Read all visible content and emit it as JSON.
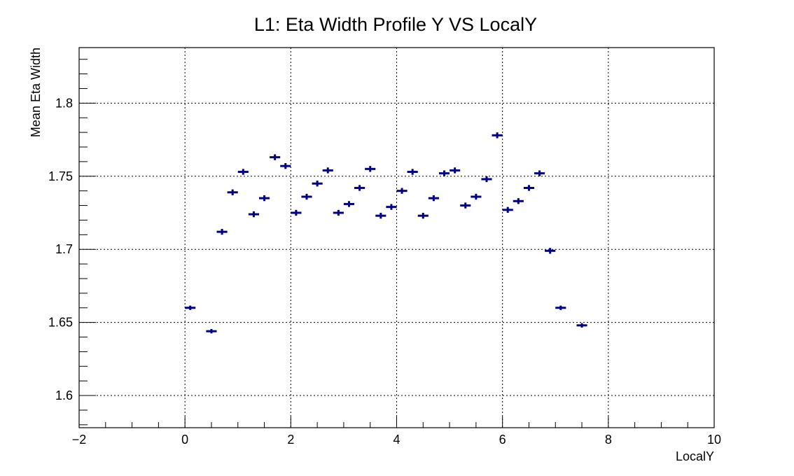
{
  "chart_data": {
    "type": "scatter",
    "title": "L1: Eta Width Profile Y VS LocalY",
    "xlabel": "LocalY",
    "ylabel": "Mean Eta Width",
    "xlim": [
      -2,
      10
    ],
    "ylim": [
      1.578,
      1.838
    ],
    "x_ticks": [
      -2,
      0,
      2,
      4,
      6,
      8,
      10
    ],
    "x_tick_labels": [
      "−2",
      "0",
      "2",
      "4",
      "6",
      "8",
      "10"
    ],
    "y_ticks": [
      1.6,
      1.65,
      1.7,
      1.75,
      1.8
    ],
    "y_tick_labels": [
      "1.6",
      "1.65",
      "1.7",
      "1.75",
      "1.8"
    ],
    "grid": true,
    "marker_color": "#000080",
    "bin_width": 0.2,
    "series": [
      {
        "x": [
          0.1,
          0.5,
          0.7,
          0.9,
          1.1,
          1.3,
          1.5,
          1.7,
          1.9,
          2.1,
          2.3,
          2.5,
          2.7,
          2.9,
          3.1,
          3.3,
          3.5,
          3.7,
          3.9,
          4.1,
          4.3,
          4.5,
          4.7,
          4.9,
          5.1,
          5.3,
          5.5,
          5.7,
          5.9,
          6.1,
          6.3,
          6.5,
          6.7,
          6.9,
          7.1,
          7.5
        ],
        "y": [
          1.66,
          1.644,
          1.712,
          1.739,
          1.753,
          1.724,
          1.735,
          1.763,
          1.757,
          1.725,
          1.736,
          1.745,
          1.754,
          1.725,
          1.731,
          1.742,
          1.755,
          1.723,
          1.729,
          1.74,
          1.753,
          1.723,
          1.735,
          1.752,
          1.754,
          1.73,
          1.736,
          1.748,
          1.778,
          1.727,
          1.733,
          1.742,
          1.752,
          1.699,
          1.66,
          1.648
        ],
        "yerr": [
          0.0015,
          0.0015,
          0.002,
          0.002,
          0.002,
          0.002,
          0.002,
          0.002,
          0.002,
          0.002,
          0.002,
          0.002,
          0.002,
          0.002,
          0.002,
          0.002,
          0.002,
          0.002,
          0.002,
          0.002,
          0.002,
          0.002,
          0.002,
          0.002,
          0.002,
          0.002,
          0.002,
          0.002,
          0.002,
          0.002,
          0.002,
          0.002,
          0.002,
          0.002,
          0.0015,
          0.0015
        ]
      }
    ]
  }
}
